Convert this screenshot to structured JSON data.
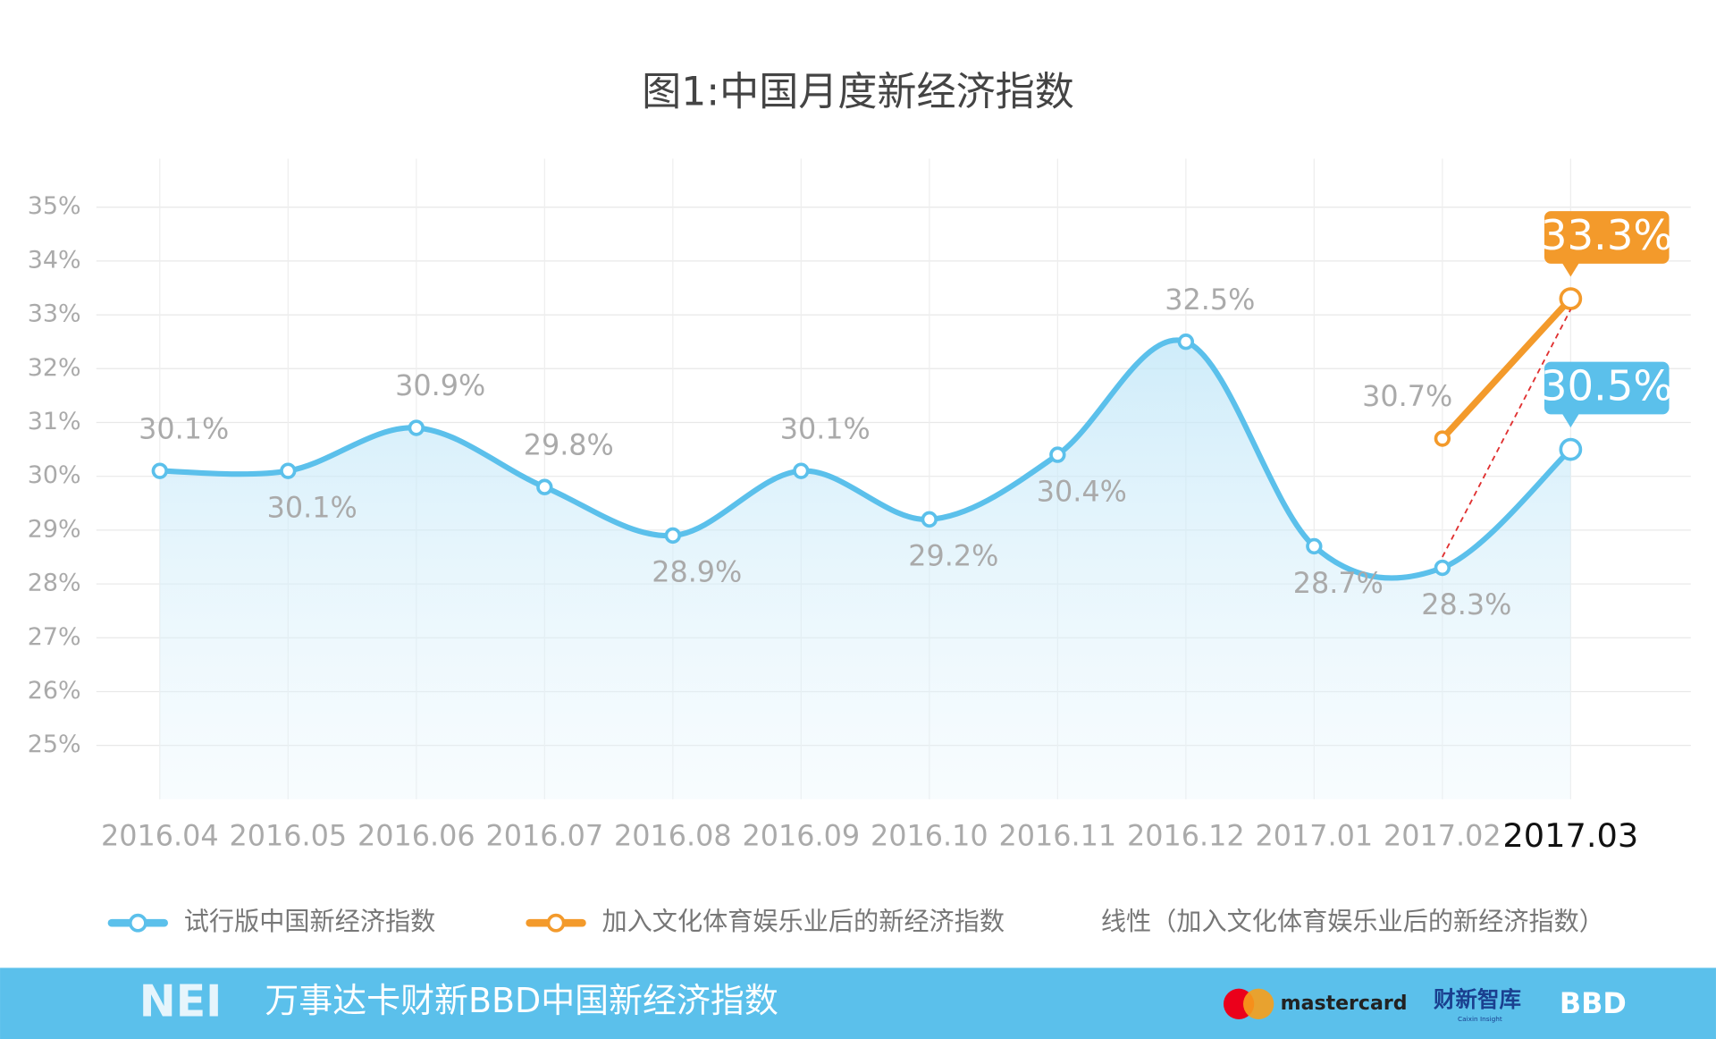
{
  "chart_data": {
    "type": "line",
    "title": "图1:中国月度新经济指数",
    "categories": [
      "2016.04",
      "2016.05",
      "2016.06",
      "2016.07",
      "2016.08",
      "2016.09",
      "2016.10",
      "2016.11",
      "2016.12",
      "2017.01",
      "2017.02",
      "2017.03"
    ],
    "series": [
      {
        "name": "试行版中国新经济指数",
        "color": "#5bc0eb",
        "values": [
          30.1,
          30.1,
          30.9,
          29.8,
          28.9,
          30.1,
          29.2,
          30.4,
          32.5,
          28.7,
          28.3,
          30.5
        ],
        "value_labels": [
          "30.1%",
          "30.1%",
          "30.9%",
          "29.8%",
          "28.9%",
          "30.1%",
          "29.2%",
          "30.4%",
          "32.5%",
          "28.7%",
          "28.3%",
          "30.5%"
        ]
      },
      {
        "name": "加入文化体育娱乐业后的新经济指数",
        "color": "#f39a2b",
        "values": [
          null,
          null,
          null,
          null,
          null,
          null,
          null,
          null,
          null,
          null,
          30.7,
          33.3
        ],
        "value_labels": [
          null,
          null,
          null,
          null,
          null,
          null,
          null,
          null,
          null,
          null,
          "30.7%",
          "33.3%"
        ]
      },
      {
        "name": "线性（加入文化体育娱乐业后的新经济指数）",
        "color": "#e03030",
        "dashed": true,
        "values": [
          null,
          null,
          null,
          null,
          null,
          null,
          null,
          null,
          null,
          null,
          28.5,
          33.1
        ]
      }
    ],
    "ylim": [
      24,
      35.9
    ],
    "yticks": [
      {
        "value": 25,
        "label": "25%"
      },
      {
        "value": 26,
        "label": "26%"
      },
      {
        "value": 27,
        "label": "27%"
      },
      {
        "value": 28,
        "label": "28%"
      },
      {
        "value": 29,
        "label": "29%"
      },
      {
        "value": 30,
        "label": "30%"
      },
      {
        "value": 31,
        "label": "31%"
      },
      {
        "value": 32,
        "label": "32%"
      },
      {
        "value": 33,
        "label": "33%"
      },
      {
        "value": 34,
        "label": "34%"
      },
      {
        "value": 35,
        "label": "35%"
      }
    ],
    "grid": true,
    "legend": "bottom"
  },
  "footer": {
    "logo": "NEI",
    "title": "万事达卡财新BBD中国新经济指数",
    "brand1": "mastercard",
    "brand2": "财新智库",
    "brand2_sub": "Caixin Insight",
    "brand3": "BBD"
  }
}
